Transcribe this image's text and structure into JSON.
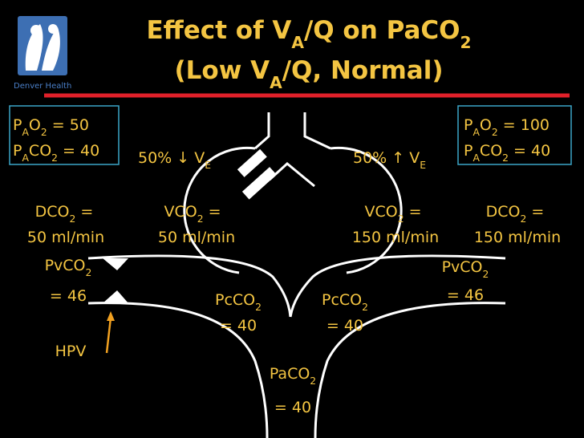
{
  "logo": {
    "caption": "Denver Health"
  },
  "title": {
    "line1": [
      "Effect of V",
      "A",
      "/Q on PaCO",
      "2"
    ],
    "line2": [
      "(Low V",
      "A",
      "/Q, Normal)"
    ]
  },
  "left_box": {
    "line1": [
      "P",
      "A",
      "O",
      "2",
      " = 50"
    ],
    "line2": [
      "P",
      "A",
      "CO",
      "2",
      " = 40"
    ]
  },
  "right_box": {
    "line1": [
      "P",
      "A",
      "O",
      "2",
      " = 100"
    ],
    "line2": [
      "P",
      "A",
      "CO",
      "2",
      " = 40"
    ]
  },
  "left_unit": {
    "ventilation": [
      "50% ↓ V",
      "E"
    ],
    "diffusion": [
      "DCO",
      "2",
      " ="
    ],
    "diffusion_rate": "50 ml/min",
    "production": [
      "VCO",
      "2",
      " ="
    ],
    "production_rate": "50 ml/min",
    "venous": [
      "PvCO",
      "2"
    ],
    "venous_value": "= 46",
    "capillary": [
      "PcCO",
      "2"
    ],
    "capillary_value": "= 40",
    "hpv": "HPV"
  },
  "right_unit": {
    "ventilation": [
      "50% ↑ V",
      "E"
    ],
    "diffusion": [
      "DCO",
      "2",
      " ="
    ],
    "diffusion_rate": "150 ml/min",
    "production": [
      "VCO",
      "2",
      " ="
    ],
    "production_rate": "150 ml/min",
    "venous": [
      "PvCO",
      "2"
    ],
    "venous_value": "= 46",
    "capillary": [
      "PcCO",
      "2"
    ],
    "capillary_value": "= 40"
  },
  "arterial": {
    "label": [
      "PaCO",
      "2"
    ],
    "value": "= 40"
  }
}
